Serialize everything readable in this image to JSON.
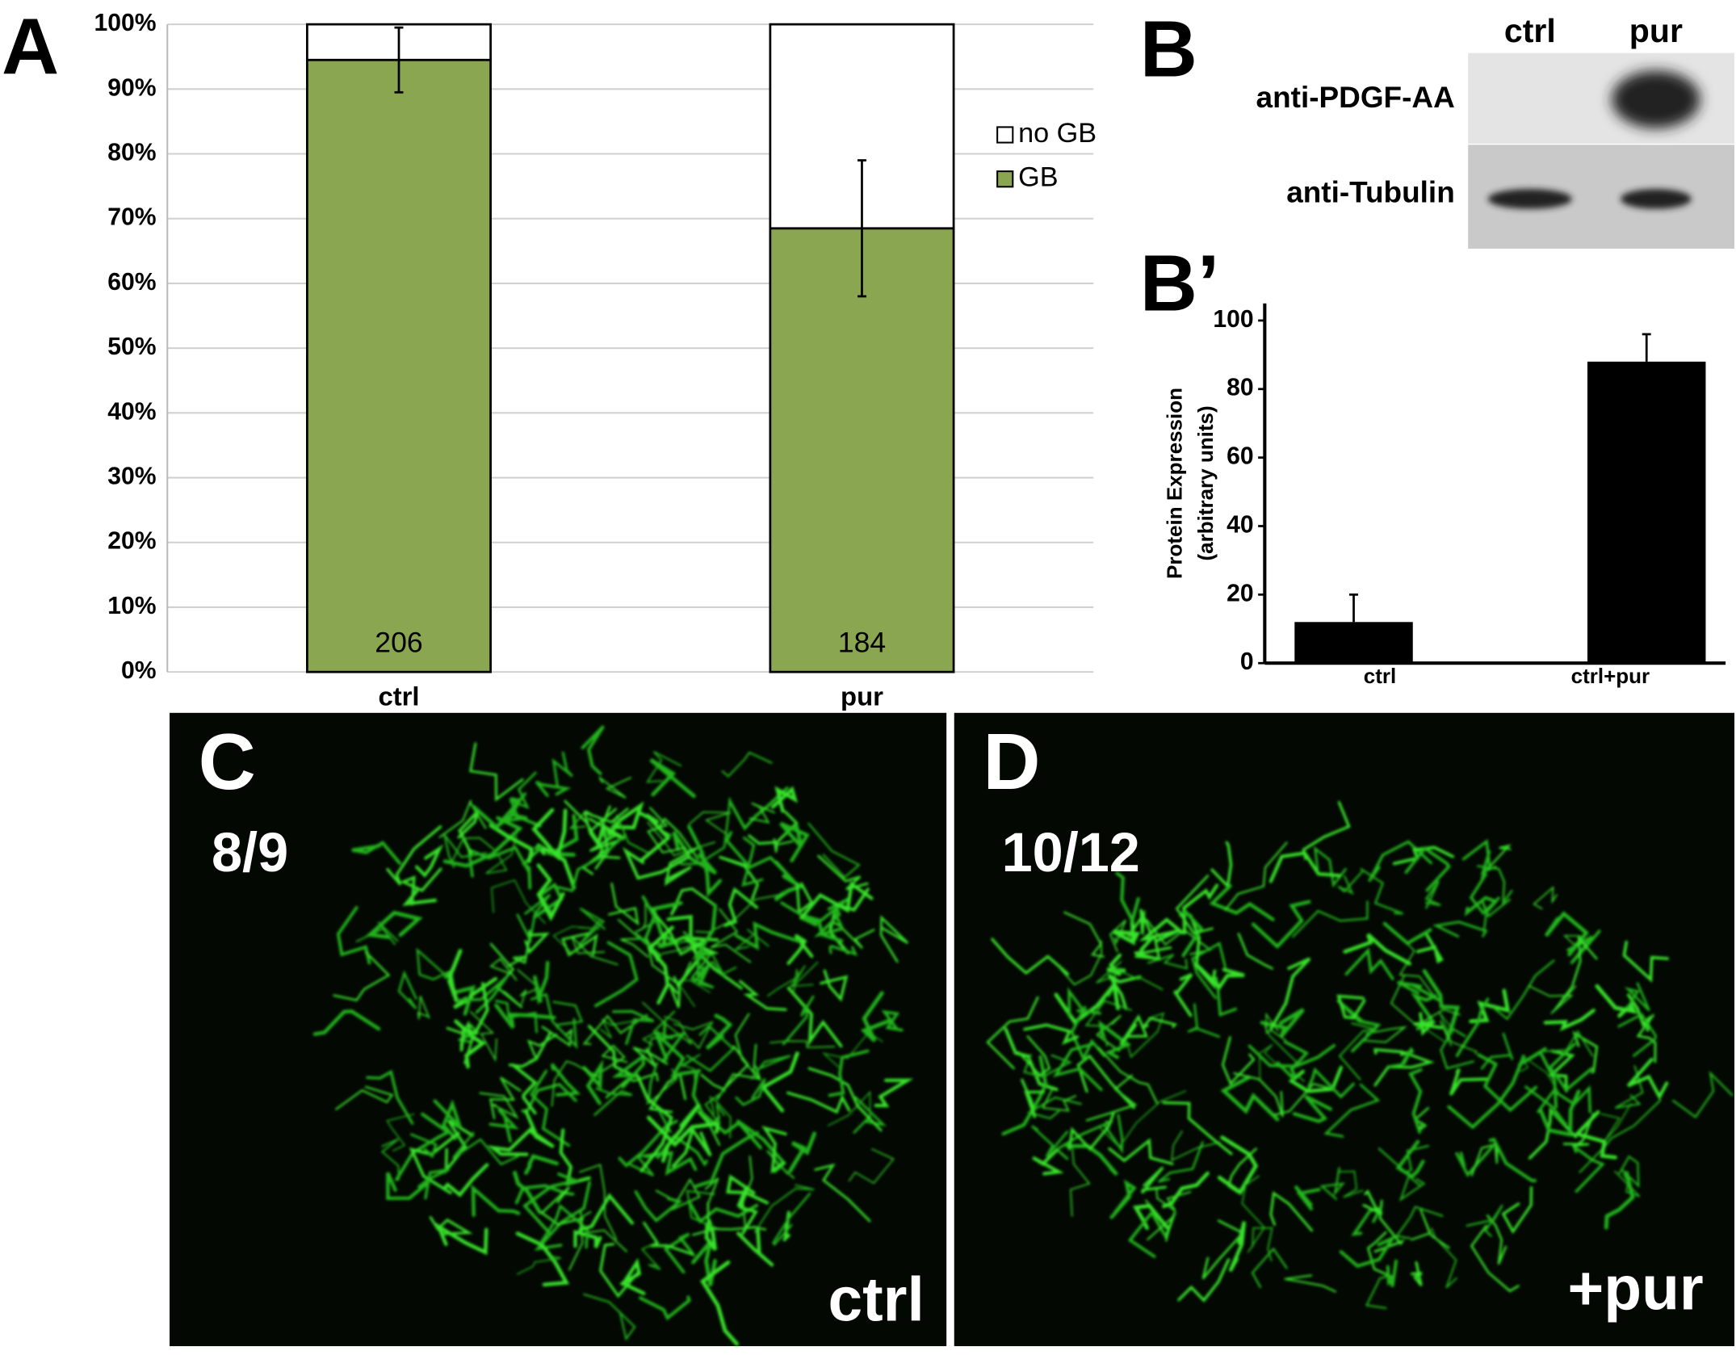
{
  "chart_data": [
    {
      "type": "bar",
      "panel": "A",
      "stacked": true,
      "grid": true,
      "legend": "right",
      "categories": [
        "ctrl",
        "pur"
      ],
      "series": [
        {
          "name": "GB",
          "color": "#8ba650",
          "values": [
            94.5,
            68.5
          ],
          "errors": [
            5,
            10.5
          ]
        },
        {
          "name": "no GB",
          "color": "#ffffff",
          "values": [
            5.5,
            31.5
          ]
        }
      ],
      "annotations": [
        "206",
        "184"
      ],
      "ylim": [
        0,
        100
      ],
      "yticks": [
        {
          "value": 0,
          "label": "0%"
        },
        {
          "value": 10,
          "label": "10%"
        },
        {
          "value": 20,
          "label": "20%"
        },
        {
          "value": 30,
          "label": "30%"
        },
        {
          "value": 40,
          "label": "40%"
        },
        {
          "value": 50,
          "label": "50%"
        },
        {
          "value": 60,
          "label": "60%"
        },
        {
          "value": 70,
          "label": "70%"
        },
        {
          "value": 80,
          "label": "80%"
        },
        {
          "value": 90,
          "label": "90%"
        },
        {
          "value": 100,
          "label": "100%"
        }
      ]
    },
    {
      "type": "bar",
      "panel": "B’",
      "stacked": false,
      "grid": false,
      "error_direction": "up",
      "categories": [
        "ctrl",
        "ctrl+pur"
      ],
      "values": [
        12,
        88
      ],
      "errors": [
        8,
        8
      ],
      "color": "#000000",
      "ylabel": [
        "Protein Expression",
        "(arbitrary units)"
      ],
      "ylim": [
        0,
        105
      ],
      "yticks": [
        0,
        20,
        40,
        60,
        80,
        100
      ]
    }
  ],
  "blot": {
    "panel": "B",
    "lanes": [
      "ctrl",
      "pur"
    ],
    "rows": [
      "anti-PDGF-AA",
      "anti-Tubulin"
    ]
  },
  "images": [
    {
      "panel": "C",
      "fraction": "8/9",
      "condition": "ctrl"
    },
    {
      "panel": "D",
      "fraction": "10/12",
      "condition": "+pur"
    }
  ]
}
